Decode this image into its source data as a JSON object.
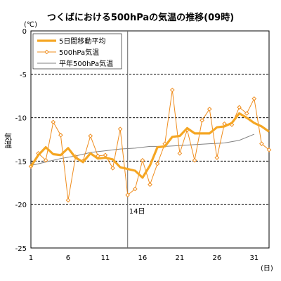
{
  "chart_data": {
    "type": "line",
    "title": "つくばにおける500hPaの気温の推移(09時)",
    "ylabel": "気温",
    "y_unit": "(℃)",
    "x_unit": "(日)",
    "xlim": [
      1,
      33
    ],
    "ylim": [
      -25,
      0
    ],
    "x_ticks": [
      1,
      6,
      11,
      16,
      21,
      26,
      31
    ],
    "y_ticks": [
      0,
      -5,
      -10,
      -15,
      -20,
      -25
    ],
    "grid": "horizontal dashed",
    "legend_position": "top-left",
    "annotation": {
      "x": 14,
      "label": "14日"
    },
    "colors": {
      "moving_avg": "#f5a623",
      "temp": "#ef8c1c",
      "normal": "#808080"
    },
    "series": [
      {
        "name": "5日間移動平均",
        "x": [
          1,
          2,
          3,
          4,
          5,
          6,
          7,
          8,
          9,
          10,
          11,
          12,
          13,
          14,
          15,
          16,
          17,
          18,
          19,
          20,
          21,
          22,
          23,
          24,
          25,
          26,
          27,
          28,
          29,
          30,
          31,
          32,
          33
        ],
        "values": [
          -15.6,
          -14.3,
          -13.4,
          -14.2,
          -14.3,
          -13.5,
          -14.6,
          -15.1,
          -14.1,
          -14.7,
          -14.6,
          -14.8,
          -15.7,
          -15.9,
          -16.1,
          -16.9,
          -15.5,
          -13.4,
          -13.3,
          -12.2,
          -12.1,
          -11.2,
          -11.8,
          -11.8,
          -11.8,
          -11.1,
          -11.0,
          -10.6,
          -9.5,
          -10.0,
          -10.6,
          -11.0,
          -11.6
        ]
      },
      {
        "name": "500hPa気温",
        "x": [
          1,
          2,
          3,
          4,
          5,
          6,
          7,
          8,
          9,
          10,
          11,
          12,
          13,
          14,
          15,
          16,
          17,
          18,
          19,
          20,
          21,
          22,
          23,
          24,
          25,
          26,
          27,
          28,
          29,
          30,
          31,
          32,
          33
        ],
        "values": [
          -15.6,
          -14.1,
          -14.9,
          -10.5,
          -12.0,
          -19.5,
          -14.5,
          -15.0,
          -12.1,
          -14.4,
          -14.3,
          -15.8,
          -11.3,
          -18.9,
          -18.2,
          -14.9,
          -17.7,
          -15.3,
          -13.0,
          -6.8,
          -14.1,
          -11.4,
          -14.9,
          -10.3,
          -9.0,
          -14.6,
          -10.7,
          -10.8,
          -8.8,
          -9.5,
          -7.8,
          -13.0,
          -13.7
        ]
      },
      {
        "name": "平年500hPa気温",
        "x": [
          1,
          3,
          5,
          7,
          9,
          11,
          13,
          15,
          17,
          19,
          21,
          23,
          25,
          27,
          29,
          31
        ],
        "values": [
          -15.5,
          -15.1,
          -14.7,
          -14.4,
          -14.0,
          -13.8,
          -13.6,
          -13.5,
          -13.3,
          -13.3,
          -13.2,
          -13.1,
          -13.0,
          -12.9,
          -12.6,
          -11.9
        ]
      }
    ]
  }
}
